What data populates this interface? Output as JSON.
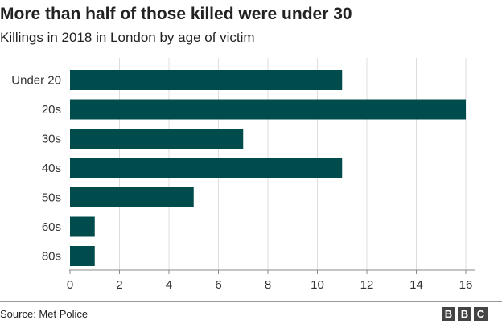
{
  "title": "More than half of those killed were under 30",
  "subtitle": "Killings in 2018 in London by age of victim",
  "source": "Source: Met Police",
  "logo": {
    "letters": [
      "B",
      "B",
      "C"
    ]
  },
  "colors": {
    "bar": "#004c4c",
    "grid": "#dddddd",
    "axis": "#888888"
  },
  "chart_data": {
    "type": "bar",
    "orientation": "horizontal",
    "categories": [
      "Under 20",
      "20s",
      "30s",
      "40s",
      "50s",
      "60s",
      "80s"
    ],
    "values": [
      11,
      16,
      7,
      11,
      5,
      1,
      1
    ],
    "xlim": [
      0,
      16
    ],
    "xticks": [
      0,
      2,
      4,
      6,
      8,
      10,
      12,
      14,
      16
    ],
    "grid": true
  }
}
